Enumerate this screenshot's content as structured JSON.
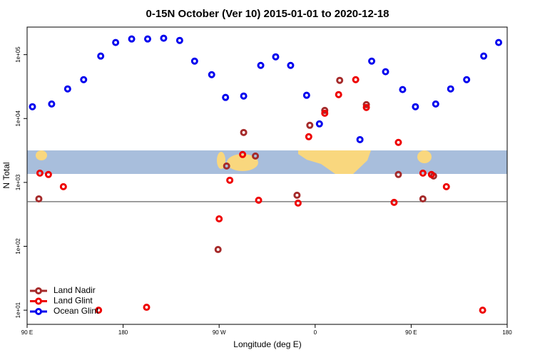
{
  "chart_data": {
    "type": "scatter",
    "title": "0-15N October (Ver 10)   2015-01-01 to 2020-12-18",
    "xlabel": "Longitude (deg E)",
    "ylabel": "N Total",
    "xlim": [
      90,
      540
    ],
    "xticks": [
      {
        "value": 90,
        "label": "90 E"
      },
      {
        "value": 180,
        "label": "180"
      },
      {
        "value": 270,
        "label": "90 W"
      },
      {
        "value": 360,
        "label": "0"
      },
      {
        "value": 450,
        "label": "90 E"
      },
      {
        "value": 540,
        "label": "180"
      }
    ],
    "ylim": [
      6,
      270000
    ],
    "log_y": true,
    "yticks": [
      {
        "value": 10,
        "label": "1e+01"
      },
      {
        "value": 100,
        "label": "1e+02"
      },
      {
        "value": 1000,
        "label": "1e+03"
      },
      {
        "value": 10000,
        "label": "1e+04"
      },
      {
        "value": 100000,
        "label": "1e+05"
      }
    ],
    "reference_line": 500,
    "legend": "bottom-left",
    "series": [
      {
        "name": "Land Nadir",
        "color": "#a52a2a",
        "x": [
          101,
          277,
          293,
          304,
          269,
          343,
          355,
          369,
          383,
          408,
          438,
          461,
          471
        ],
        "values": [
          553,
          1806,
          6050,
          2590,
          89,
          630,
          7830,
          13400,
          39600,
          16500,
          1330,
          553,
          1262
        ]
      },
      {
        "name": "Land Glint",
        "color": "#ee0000",
        "x": [
          102,
          110,
          124,
          157,
          202,
          270,
          280,
          292,
          307,
          344,
          354,
          369,
          382,
          398,
          408,
          434,
          438,
          461,
          469,
          483,
          517
        ],
        "values": [
          1397,
          1330,
          857,
          10,
          11.1,
          269,
          1082,
          2730,
          526,
          475,
          5190,
          12100,
          23700,
          40600,
          14900,
          487,
          4230,
          1397,
          1330,
          857,
          10
        ]
      },
      {
        "name": "Ocean Glint",
        "color": "#0000ee",
        "x": [
          95,
          113,
          128,
          143,
          159,
          173,
          188,
          203,
          218,
          233,
          247,
          263,
          276,
          293,
          309,
          323,
          337,
          352,
          364,
          402,
          413,
          426,
          442,
          454,
          473,
          487,
          502,
          518,
          532
        ],
        "values": [
          15300,
          16900,
          29100,
          40600,
          95000,
          155000,
          176000,
          176000,
          181000,
          167000,
          79200,
          48600,
          21400,
          22500,
          67900,
          92500,
          67900,
          23100,
          8240,
          4680,
          79200,
          54000,
          28400,
          15300,
          16900,
          29100,
          40600,
          95000,
          155000
        ]
      }
    ]
  }
}
